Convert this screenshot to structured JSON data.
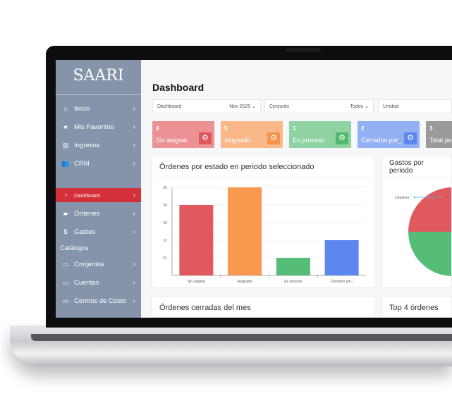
{
  "sidebar": {
    "logo": "SAARI",
    "items": [
      {
        "label": "Inicio",
        "icon": "home-icon"
      },
      {
        "label": "Mis Favoritos",
        "icon": "star-icon"
      },
      {
        "label": "Ingresos",
        "icon": "document-icon"
      },
      {
        "label": "CRM",
        "icon": "users-icon"
      },
      {
        "label": "Dashboard",
        "icon": "dashboard-icon",
        "active": true
      },
      {
        "label": "Ordenes",
        "icon": "briefcase-icon"
      },
      {
        "label": "Gastos",
        "icon": "dollar-icon"
      },
      {
        "label": "Conjuntos",
        "icon": "folder-icon"
      },
      {
        "label": "Cuentas",
        "icon": "folder-icon"
      },
      {
        "label": "Centros de Costo",
        "icon": "folder-icon"
      }
    ],
    "section": "Catálogos"
  },
  "header": {
    "title": "Dashboard"
  },
  "filters": [
    {
      "label": "Dashboard",
      "value": "Nov 2025"
    },
    {
      "label": "Conjunto",
      "value": "Todos"
    },
    {
      "label": "Unidad",
      "value": ""
    }
  ],
  "cards": [
    {
      "count": "4",
      "label": "Sin asignar",
      "color": "#ec9294",
      "iconbg": "#e05558"
    },
    {
      "count": "5",
      "label": "Asignado",
      "color": "#fab888",
      "iconbg": "#f7934d"
    },
    {
      "count": "1",
      "label": "En proceso",
      "color": "#8fd3a3",
      "iconbg": "#4fb96f"
    },
    {
      "count": "2",
      "label": "Cerrados por_",
      "color": "#92b0f2",
      "iconbg": "#5c86ee"
    },
    {
      "count": "3",
      "label": "Total pe",
      "color": "#9a9a9a",
      "iconbg": "#888"
    }
  ],
  "panels": {
    "bar_title": "Órdenes por estado en periodo seleccionado",
    "pie_title": "Gastos por periodo",
    "closed_title": "Órdenes cerradas del mes",
    "top_title": "Top 4 órdenes"
  },
  "chart_data": [
    {
      "type": "bar",
      "title": "Órdenes por estado en periodo seleccionado",
      "categories": [
        "Sin asignar",
        "Asignado",
        "En proceso",
        "Cerrados por_"
      ],
      "values": [
        0.4,
        0.5,
        0.1,
        0.2
      ],
      "colors": [
        "#e05a5d",
        "#fb9850",
        "#55bd77",
        "#5b87ef"
      ],
      "yticks": [
        "01",
        "02",
        "03",
        "04",
        "05"
      ],
      "ylim": [
        0,
        0.5
      ],
      "grid": true
    },
    {
      "type": "pie",
      "title": "Gastos por periodo",
      "labels": [
        "Limpieza",
        ""
      ],
      "values": [
        50,
        50
      ],
      "colors": [
        "#e05a5d",
        "#55bd77"
      ]
    }
  ]
}
